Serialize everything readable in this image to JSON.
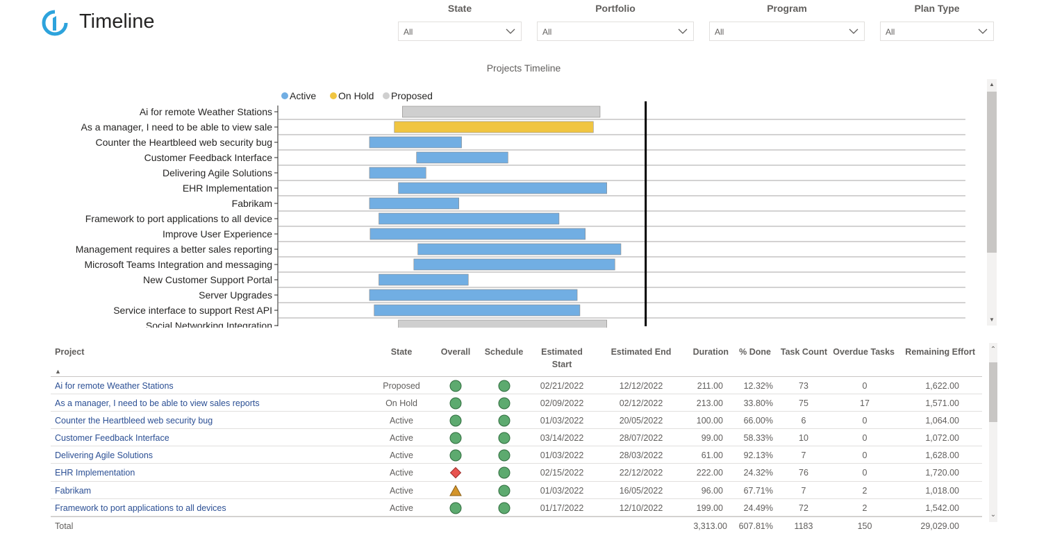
{
  "app": {
    "title": "Timeline"
  },
  "filters": [
    {
      "label": "State",
      "value": "All"
    },
    {
      "label": "Portfolio",
      "value": "All"
    },
    {
      "label": "Program",
      "value": "All"
    },
    {
      "label": "Plan Type",
      "value": "All"
    }
  ],
  "colors": {
    "active": "#71aee3",
    "on_hold": "#f0c541",
    "proposed": "#cfcfcf",
    "green": "#5daa6f",
    "red": "#e8534f",
    "amber": "#d4952a",
    "logo": "#2da3dc"
  },
  "chart_data": {
    "type": "gantt",
    "title": "Projects Timeline",
    "legend": [
      {
        "name": "Active",
        "color": "#71aee3"
      },
      {
        "name": "On Hold",
        "color": "#f0c541"
      },
      {
        "name": "Proposed",
        "color": "#cfcfcf"
      }
    ],
    "legend_position": "top-left",
    "x_range": [
      "2022-01-01",
      "2023-06-30"
    ],
    "today_marker": "2022-12-22",
    "rows": [
      {
        "label": "Ai for remote Weather Stations",
        "start": "2022-02-21",
        "end": "2022-12-12",
        "state": "Proposed"
      },
      {
        "label": "As a manager, I need to be able to view sale",
        "start": "2022-02-09",
        "end": "2022-12-02",
        "state": "On Hold"
      },
      {
        "label": "Counter the Heartbleed web security bug",
        "start": "2022-01-03",
        "end": "2022-05-20",
        "state": "Active"
      },
      {
        "label": "Customer Feedback Interface",
        "start": "2022-03-14",
        "end": "2022-07-28",
        "state": "Active"
      },
      {
        "label": "Delivering Agile Solutions",
        "start": "2022-01-03",
        "end": "2022-03-28",
        "state": "Active"
      },
      {
        "label": "EHR Implementation",
        "start": "2022-02-15",
        "end": "2022-12-22",
        "state": "Active"
      },
      {
        "label": "Fabrikam",
        "start": "2022-01-03",
        "end": "2022-05-16",
        "state": "Active"
      },
      {
        "label": "Framework to port applications to all device",
        "start": "2022-01-17",
        "end": "2022-10-12",
        "state": "Active"
      },
      {
        "label": "Improve User Experience",
        "start": "2022-01-04",
        "end": "2022-11-20",
        "state": "Active"
      },
      {
        "label": "Management requires a better sales reporting",
        "start": "2022-03-16",
        "end": "2023-01-12",
        "state": "Active"
      },
      {
        "label": "Microsoft Teams Integration and messaging",
        "start": "2022-03-10",
        "end": "2023-01-03",
        "state": "Active"
      },
      {
        "label": "New Customer Support Portal",
        "start": "2022-01-17",
        "end": "2022-05-30",
        "state": "Active"
      },
      {
        "label": "Server Upgrades",
        "start": "2022-01-03",
        "end": "2022-11-08",
        "state": "Active"
      },
      {
        "label": "Service interface to support Rest API",
        "start": "2022-01-10",
        "end": "2022-11-12",
        "state": "Active"
      },
      {
        "label": "Social Networking Integration",
        "start": "2022-02-15",
        "end": "2022-12-22",
        "state": "Proposed"
      }
    ]
  },
  "table": {
    "columns": {
      "project": "Project",
      "state": "State",
      "overall": "Overall",
      "schedule": "Schedule",
      "start_1": "Estimated",
      "start_2": "Start",
      "end": "Estimated End",
      "duration": "Duration",
      "done": "% Done",
      "tasks": "Task Count",
      "overdue": "Overdue Tasks",
      "remaining": "Remaining Effort"
    },
    "rows": [
      {
        "project": "Ai for remote Weather Stations",
        "state": "Proposed",
        "overall": "green",
        "schedule": "green",
        "start": "02/21/2022",
        "end": "12/12/2022",
        "duration": "211.00",
        "done": "12.32%",
        "tasks": "73",
        "overdue": "0",
        "remaining": "1,622.00"
      },
      {
        "project": "As a manager, I need to be able to view sales reports",
        "state": "On Hold",
        "overall": "green",
        "schedule": "green",
        "start": "02/09/2022",
        "end": "02/12/2022",
        "duration": "213.00",
        "done": "33.80%",
        "tasks": "75",
        "overdue": "17",
        "remaining": "1,571.00"
      },
      {
        "project": "Counter the Heartbleed web security bug",
        "state": "Active",
        "overall": "green",
        "schedule": "green",
        "start": "01/03/2022",
        "end": "20/05/2022",
        "duration": "100.00",
        "done": "66.00%",
        "tasks": "6",
        "overdue": "0",
        "remaining": "1,064.00"
      },
      {
        "project": "Customer Feedback Interface",
        "state": "Active",
        "overall": "green",
        "schedule": "green",
        "start": "03/14/2022",
        "end": "28/07/2022",
        "duration": "99.00",
        "done": "58.33%",
        "tasks": "10",
        "overdue": "0",
        "remaining": "1,072.00"
      },
      {
        "project": "Delivering Agile Solutions",
        "state": "Active",
        "overall": "green",
        "schedule": "green",
        "start": "01/03/2022",
        "end": "28/03/2022",
        "duration": "61.00",
        "done": "92.13%",
        "tasks": "7",
        "overdue": "0",
        "remaining": "1,628.00"
      },
      {
        "project": "EHR Implementation",
        "state": "Active",
        "overall": "red-diamond",
        "schedule": "green",
        "start": "02/15/2022",
        "end": "22/12/2022",
        "duration": "222.00",
        "done": "24.32%",
        "tasks": "76",
        "overdue": "0",
        "remaining": "1,720.00"
      },
      {
        "project": "Fabrikam",
        "state": "Active",
        "overall": "amber-triangle",
        "schedule": "green",
        "start": "01/03/2022",
        "end": "16/05/2022",
        "duration": "96.00",
        "done": "67.71%",
        "tasks": "7",
        "overdue": "2",
        "remaining": "1,018.00"
      },
      {
        "project": "Framework to port applications to all devices",
        "state": "Active",
        "overall": "green",
        "schedule": "green",
        "start": "01/17/2022",
        "end": "12/10/2022",
        "duration": "199.00",
        "done": "24.49%",
        "tasks": "72",
        "overdue": "2",
        "remaining": "1,542.00"
      }
    ],
    "total": {
      "label": "Total",
      "duration": "3,313.00",
      "done": "607.81%",
      "tasks": "1183",
      "overdue": "150",
      "remaining": "29,029.00"
    }
  }
}
